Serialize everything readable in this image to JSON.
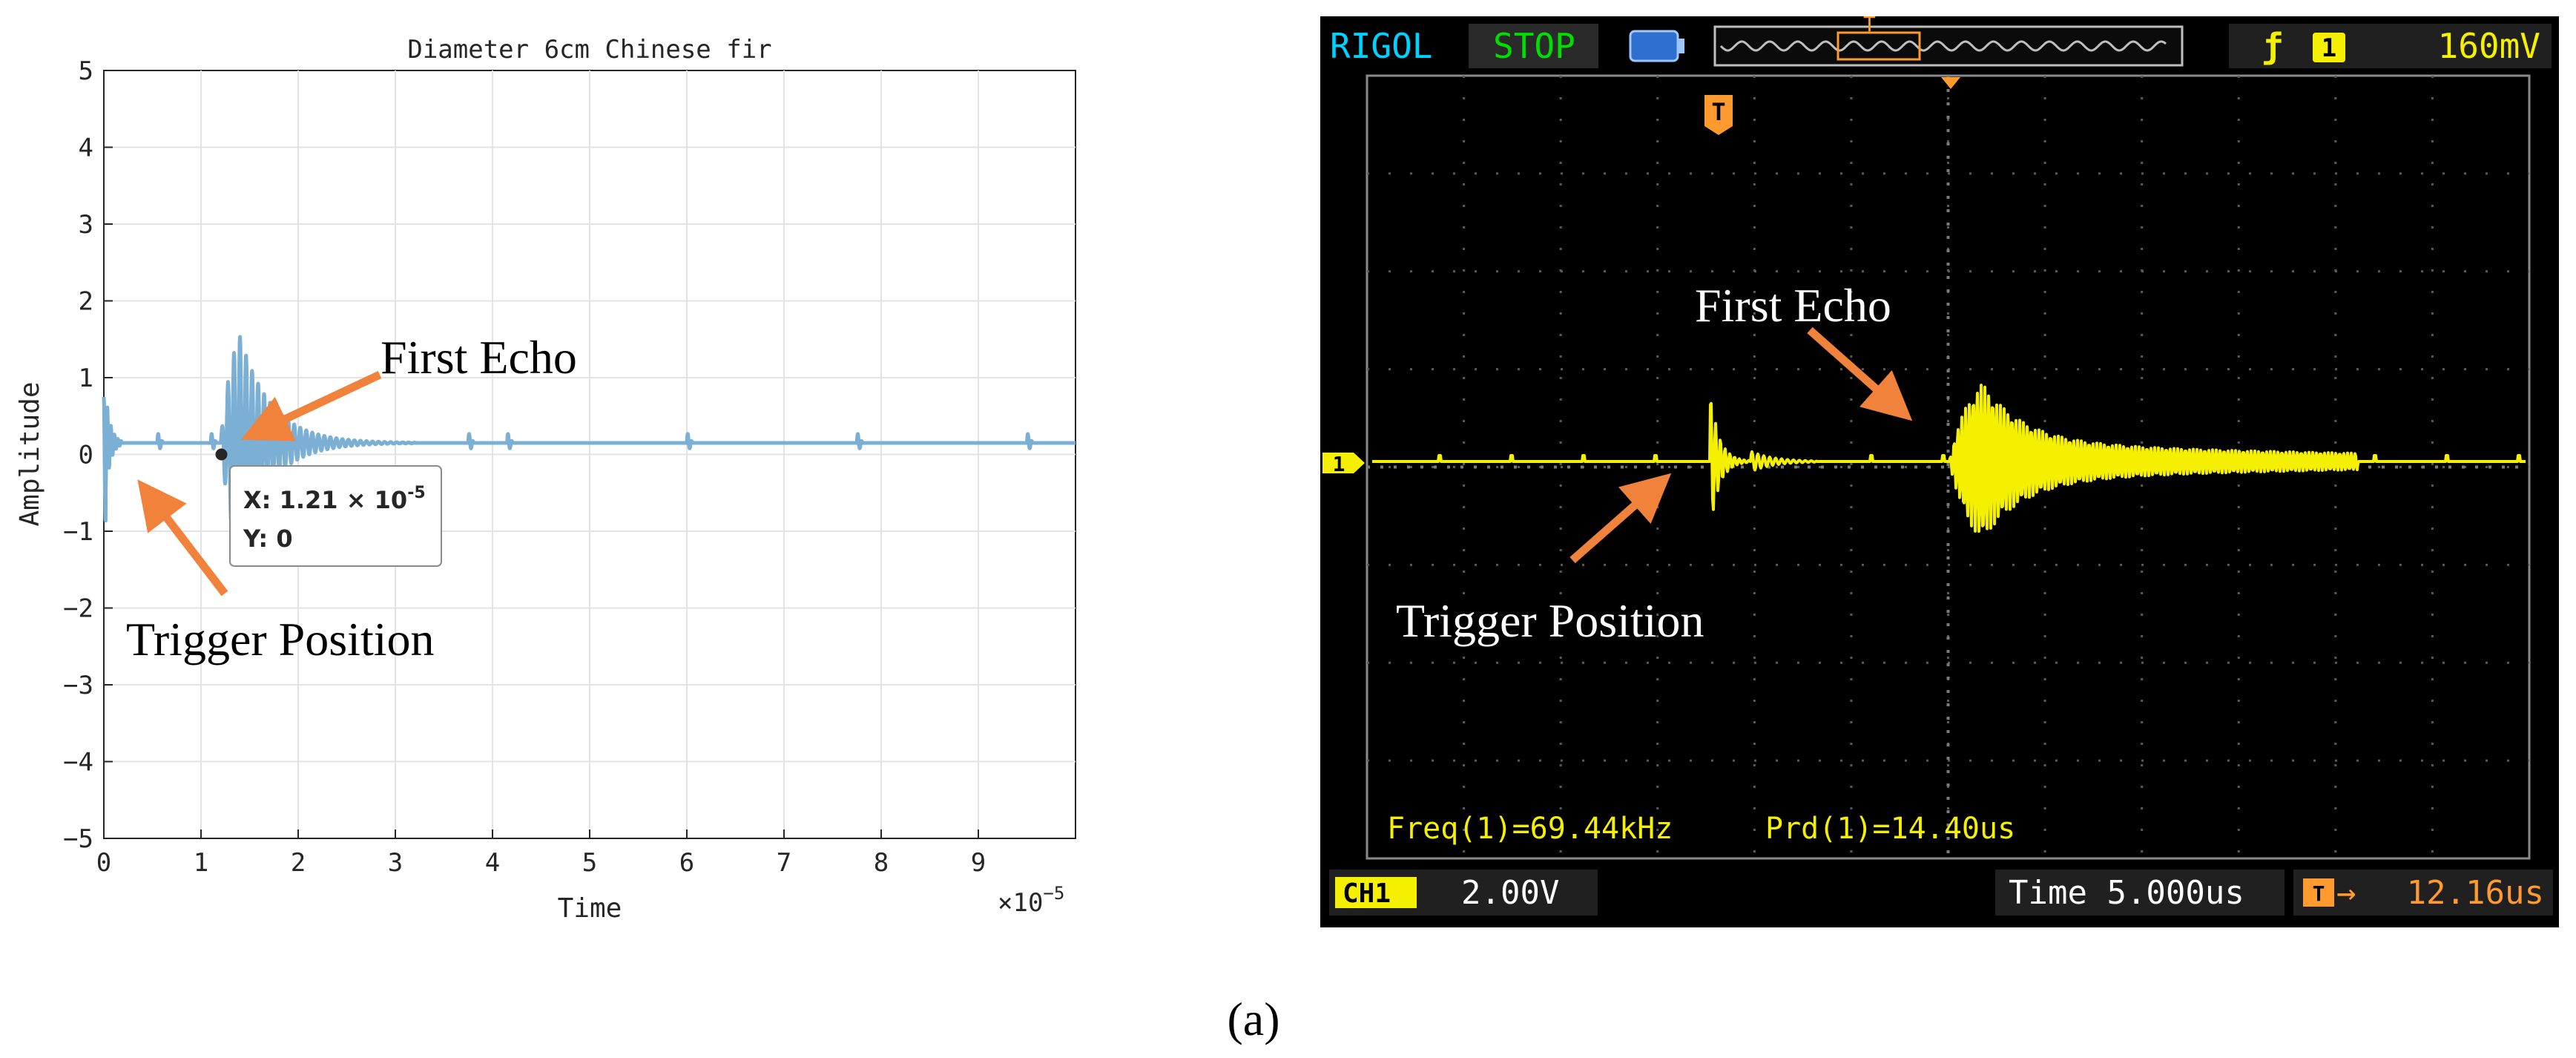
{
  "chart_data": [
    {
      "type": "line",
      "title": "Diameter 6cm Chinese fir",
      "xlabel": "Time",
      "ylabel": "Amplitude",
      "x_exponent_label": "×10",
      "x_exponent_power": "−5",
      "xlim": [
        0,
        10
      ],
      "ylim": [
        -5,
        5
      ],
      "x_ticks": [
        "0",
        "1",
        "2",
        "3",
        "4",
        "5",
        "6",
        "7",
        "8",
        "9"
      ],
      "y_ticks": [
        "5",
        "4",
        "3",
        "2",
        "1",
        "0",
        "−1",
        "−2",
        "−3",
        "−4",
        "−5"
      ],
      "grid": true,
      "line_color": "#7bafd4",
      "baseline": 0.15,
      "echo_burst": {
        "start": 1.2,
        "end": 3.2,
        "peak_pos": 2.35,
        "peak_neg": -1.95
      },
      "spikes": [
        0.55,
        1.1,
        3.75,
        4.15,
        6.0,
        7.75,
        9.5
      ],
      "datatip": {
        "x": 1.21,
        "y": 0,
        "x_label": "X: 1.21 × 10",
        "x_power": "-5",
        "y_label": "Y: 0"
      },
      "annotations": [
        "First Echo",
        "Trigger Position"
      ],
      "arrow_color": "#f0823c"
    },
    {
      "type": "line",
      "brand": "RIGOL",
      "run_state": "STOP",
      "trigger_marker": "T",
      "trigger_edge": "ƒ",
      "trigger_channel": "1",
      "trigger_level": "160mV",
      "channel_marker": "1",
      "measurement_freq": "Freq(1)=69.44kHz",
      "measurement_period": "Prd(1)=14.40us",
      "ch1_label": "CH1",
      "ch1_scale": "2.00V",
      "timebase": "Time 5.000us",
      "trigger_offset": "12.16us",
      "trace_color": "#f5f000",
      "annotations": [
        "First Echo",
        "Trigger Position"
      ],
      "arrow_color": "#f0823c"
    }
  ],
  "caption": "(a)"
}
